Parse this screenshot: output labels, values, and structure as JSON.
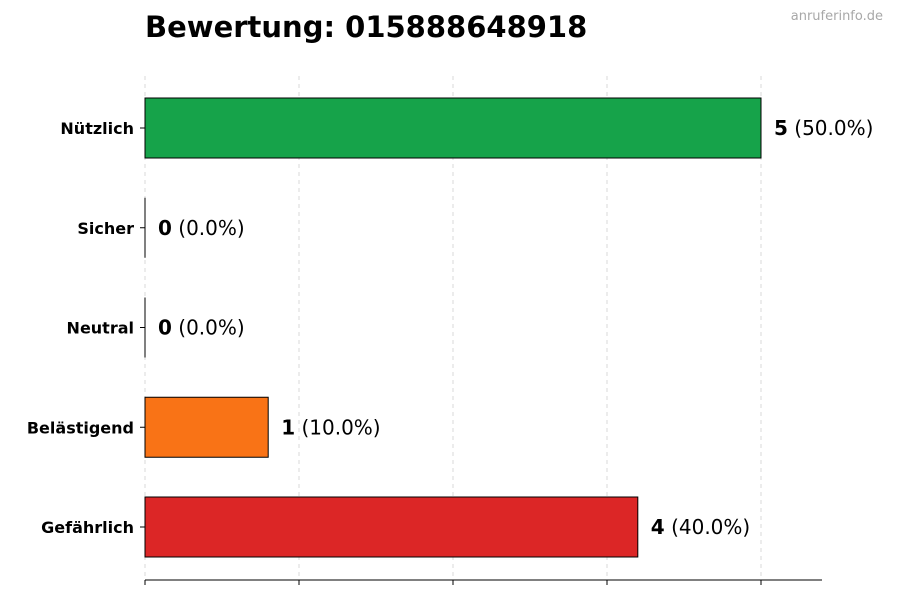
{
  "page": {
    "title": "Bewertung: 015888648918",
    "watermark": "anruferinfo.de"
  },
  "chart_data": {
    "type": "bar",
    "orientation": "horizontal",
    "title": "Bewertung: 015888648918",
    "xlabel": "",
    "ylabel": "",
    "xlim": [
      0,
      5.5
    ],
    "grid": "vertical dashed",
    "legend": "none",
    "categories": [
      "Nützlich",
      "Sicher",
      "Neutral",
      "Belästigend",
      "Gefährlich"
    ],
    "values": [
      5,
      0,
      0,
      1,
      4
    ],
    "percent_labels": [
      "(50.0%)",
      "(0.0%)",
      "(0.0%)",
      "(10.0%)",
      "(40.0%)"
    ],
    "colors": [
      "#16a34a",
      "#2563eb",
      "#6b7280",
      "#f97316",
      "#dc2626"
    ]
  }
}
